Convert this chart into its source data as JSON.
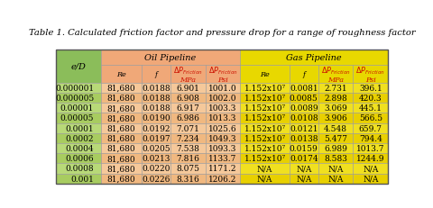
{
  "title": "Table 1. Calculated friction factor and pressure drop for a range of roughness factor",
  "rows": [
    [
      "0.000001",
      "81,680",
      "0.0188",
      "6.901",
      "1001.0",
      "1.152x10⁷",
      "0.0081",
      "2.731",
      "396.1"
    ],
    [
      "0.000005",
      "81,680",
      "0.0188",
      "6.908",
      "1002.0",
      "1.152x10⁷",
      "0.0085",
      "2.898",
      "420.3"
    ],
    [
      "0.00001",
      "81,680",
      "0.0188",
      "6.917",
      "1003.3",
      "1.152x10⁷",
      "0.0089",
      "3.069",
      "445.1"
    ],
    [
      "0.00005",
      "81,680",
      "0.0190",
      "6.986",
      "1013.3",
      "1.152x10⁷",
      "0.0108",
      "3.906",
      "566.5"
    ],
    [
      "0.0001",
      "81,680",
      "0.0192",
      "7.071",
      "1025.6",
      "1.152x10⁷",
      "0.0121",
      "4.548",
      "659.7"
    ],
    [
      "0.0002",
      "81,680",
      "0.0197",
      "7.234",
      "1049.3",
      "1.152x10⁷",
      "0.0138",
      "5.477",
      "794.4"
    ],
    [
      "0.0004",
      "81,680",
      "0.0205",
      "7.538",
      "1093.3",
      "1.152x10⁷",
      "0.0159",
      "6.989",
      "1013.7"
    ],
    [
      "0.0006",
      "81,680",
      "0.0213",
      "7.816",
      "1133.7",
      "1.152x10⁷",
      "0.0174",
      "8.583",
      "1244.9"
    ],
    [
      "0.0008",
      "81,680",
      "0.0220",
      "8.075",
      "1171.2",
      "N/A",
      "N/A",
      "N/A",
      "N/A"
    ],
    [
      "0.001",
      "81,680",
      "0.0226",
      "8.316",
      "1206.2",
      "N/A",
      "N/A",
      "N/A",
      "N/A"
    ]
  ],
  "green_dark": "#8BBD5A",
  "green_light": "#B8D978",
  "orange_header": "#F0A878",
  "orange_data": "#F5C89A",
  "orange_data_alt": "#F0B880",
  "yellow_header": "#E8D800",
  "yellow_data": "#F0E020",
  "yellow_data_alt": "#E8D000",
  "red_text": "#CC1100",
  "border_color": "#999999",
  "title_fontsize": 7.2,
  "header_fontsize": 7.0,
  "subheader_fontsize": 5.8,
  "cell_fontsize": 6.5
}
